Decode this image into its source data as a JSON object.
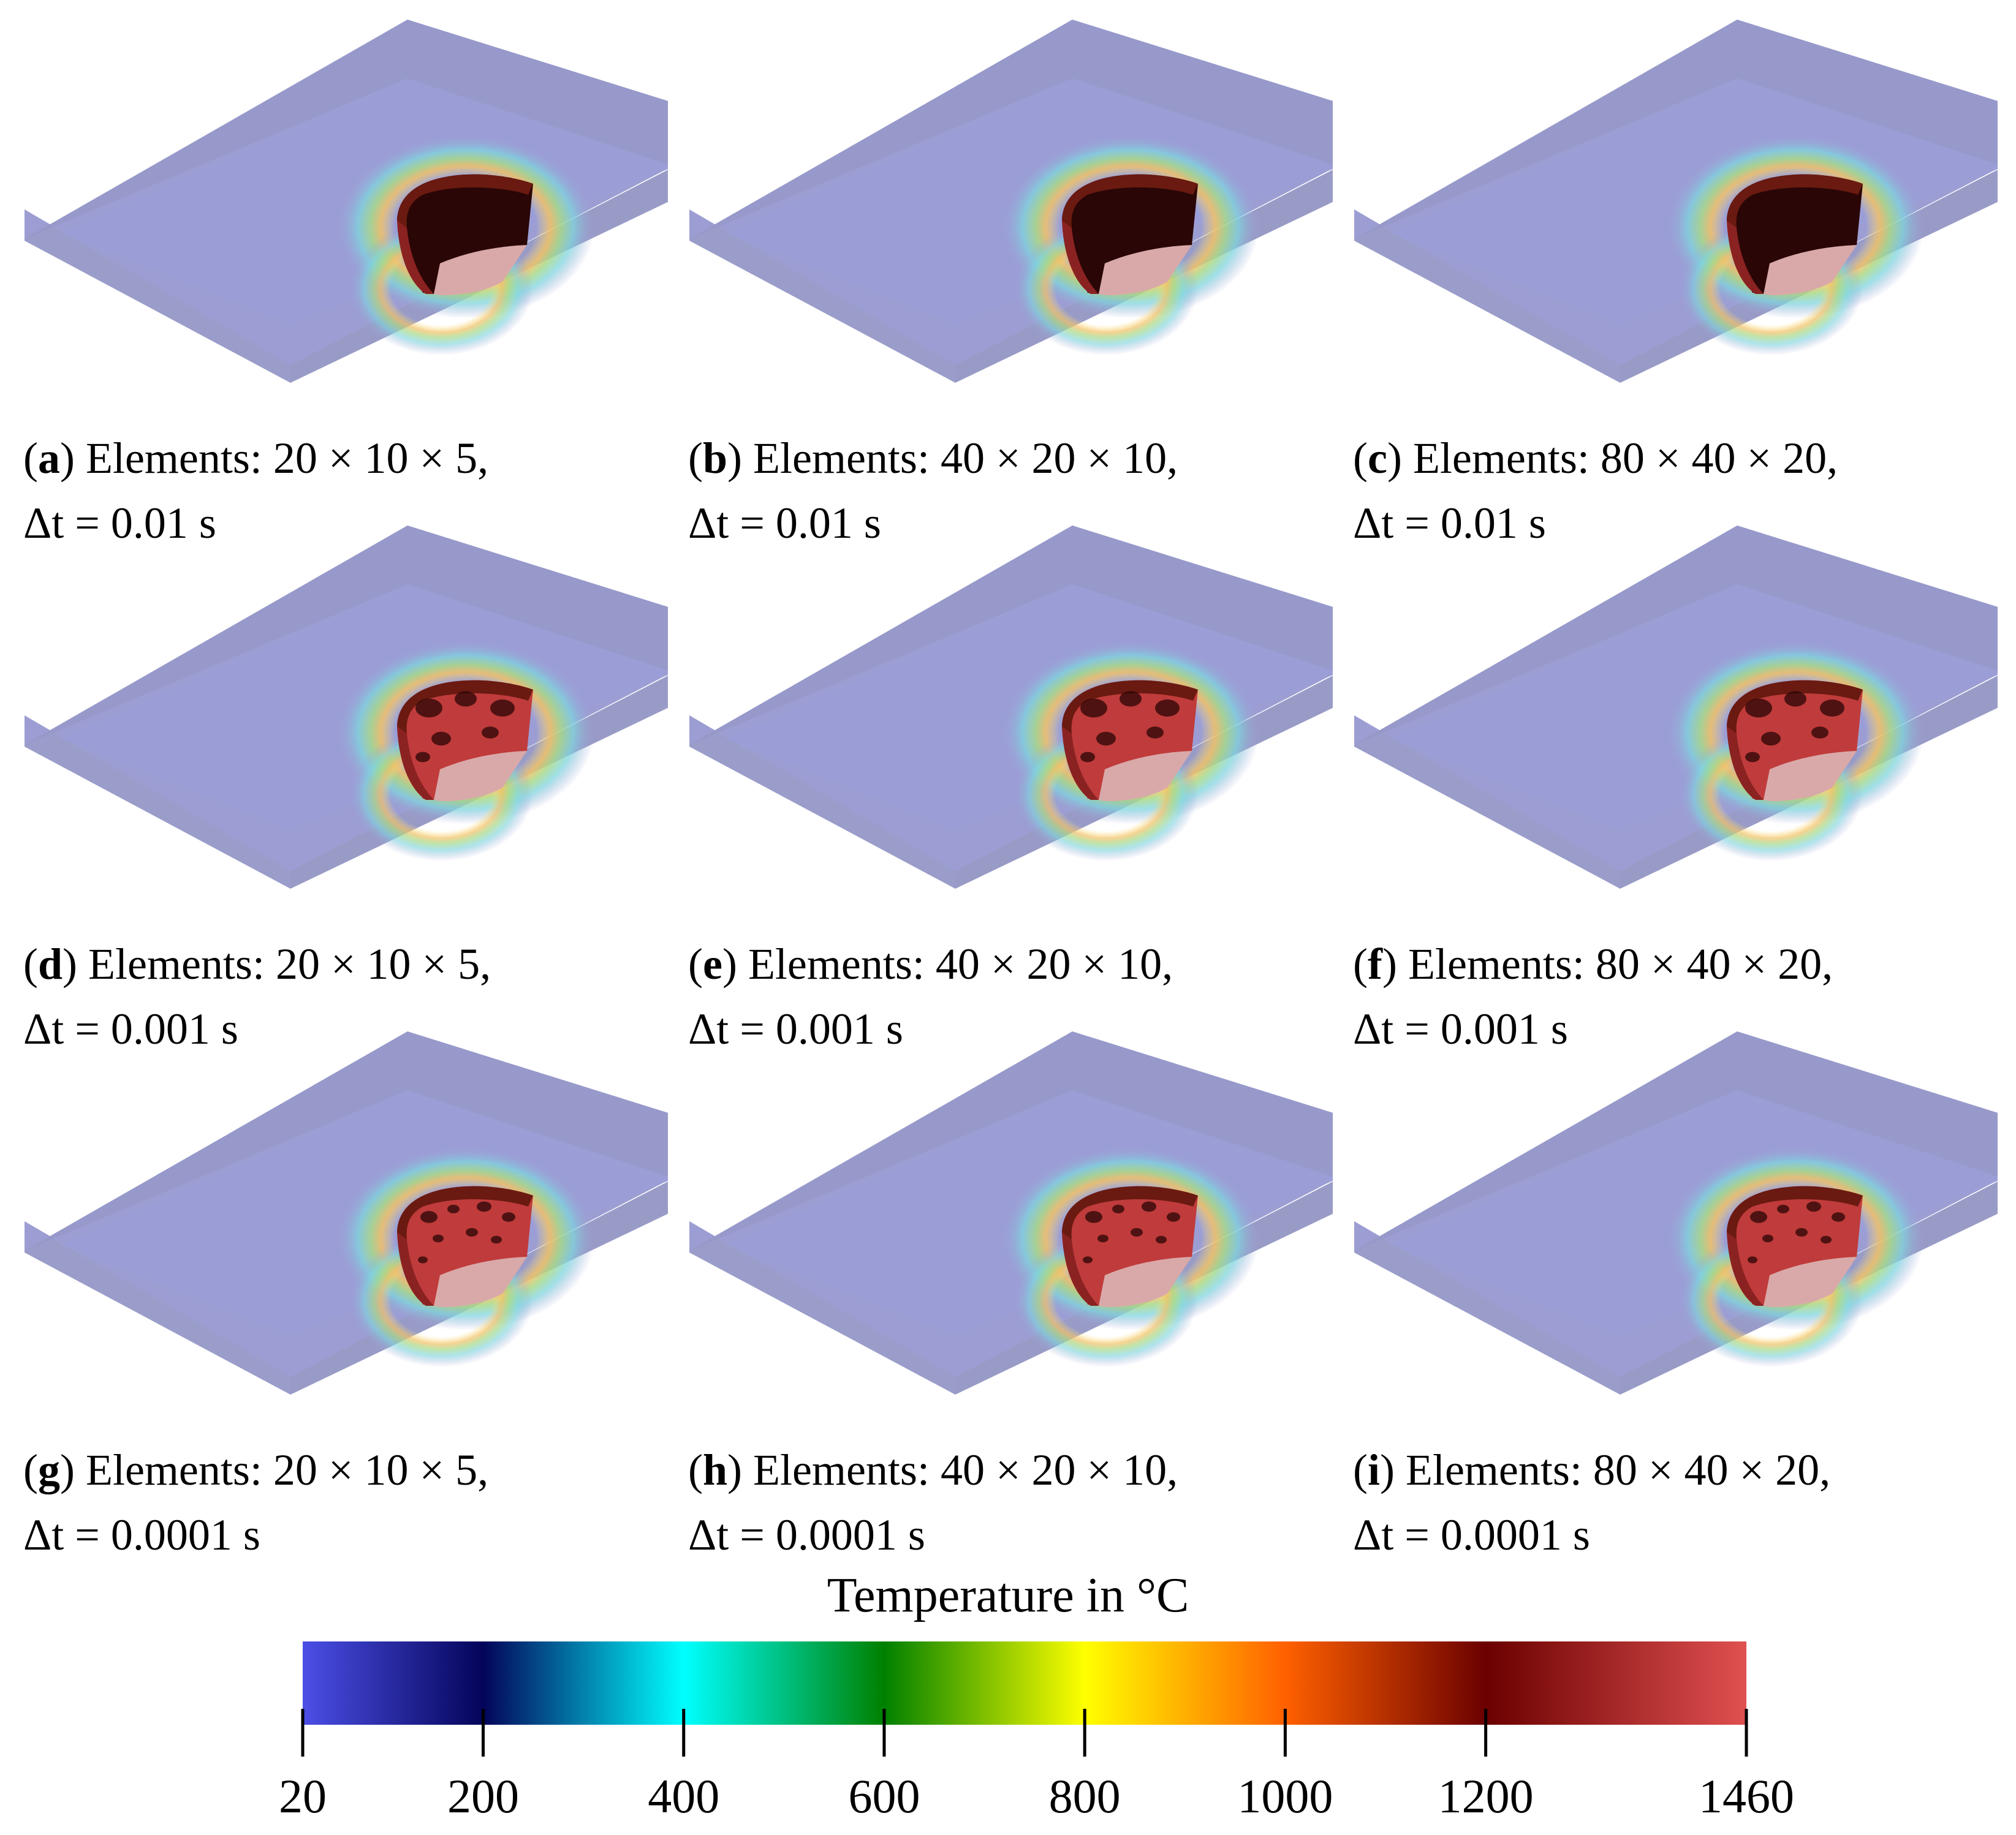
{
  "panels": [
    {
      "letter": "a",
      "elements_label": "Elements:",
      "dims": "20 × 10 × 5,",
      "dt_label": "Δt = 0.01 s"
    },
    {
      "letter": "b",
      "elements_label": "Elements:",
      "dims": "40 × 20 × 10,",
      "dt_label": "Δt = 0.01 s"
    },
    {
      "letter": "c",
      "elements_label": "Elements:",
      "dims": "80 × 40 × 20,",
      "dt_label": "Δt = 0.01 s"
    },
    {
      "letter": "d",
      "elements_label": "Elements:",
      "dims": "20 × 10 × 5,",
      "dt_label": "Δt = 0.001 s"
    },
    {
      "letter": "e",
      "elements_label": "Elements:",
      "dims": "40 × 20 × 10,",
      "dt_label": "Δt = 0.001 s"
    },
    {
      "letter": "f",
      "elements_label": "Elements:",
      "dims": "80 × 40 × 20,",
      "dt_label": "Δt = 0.001 s"
    },
    {
      "letter": "g",
      "elements_label": "Elements:",
      "dims": "20 × 10 × 5,",
      "dt_label": "Δt = 0.0001 s"
    },
    {
      "letter": "h",
      "elements_label": "Elements:",
      "dims": "40 × 20 × 10,",
      "dt_label": "Δt = 0.0001 s"
    },
    {
      "letter": "i",
      "elements_label": "Elements:",
      "dims": "80 × 40 × 20,",
      "dt_label": "Δt = 0.0001 s"
    }
  ],
  "colorbar": {
    "title": "Temperature in °C",
    "min": 20,
    "max": 1460,
    "ticks": [
      20,
      200,
      400,
      600,
      800,
      1000,
      1200,
      1460
    ],
    "stops": [
      {
        "value": 20,
        "color": "#4b4fe6"
      },
      {
        "value": 200,
        "color": "#04045a"
      },
      {
        "value": 400,
        "color": "#00ffff"
      },
      {
        "value": 600,
        "color": "#008000"
      },
      {
        "value": 800,
        "color": "#ffff00"
      },
      {
        "value": 1000,
        "color": "#ff6000"
      },
      {
        "value": 1200,
        "color": "#6b0000"
      },
      {
        "value": 1460,
        "color": "#e05050"
      }
    ]
  },
  "colors": {
    "plate_top": "#9c9ed3",
    "plate_side_left": "#9a9dca",
    "plate_side_right": "#9496c4",
    "pool_outer": "#6a1a10",
    "pool_inner": "#c03b3b",
    "pool_dark": "#2a0606",
    "pool_floor": "#d9a9a9"
  }
}
